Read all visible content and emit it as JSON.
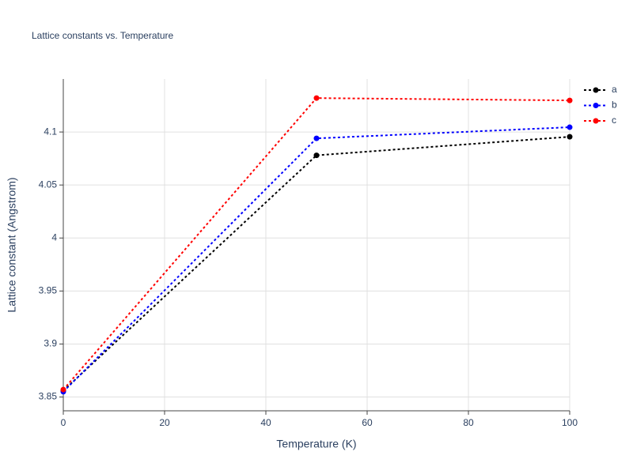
{
  "chart_data": {
    "type": "line",
    "title": "Lattice constants vs. Temperature",
    "x_label": "Temperature (K)",
    "y_label": "Lattice constant (Angstrom)",
    "x": [
      0,
      50,
      100
    ],
    "series": [
      {
        "name": "a",
        "color": "#000000",
        "values": [
          3.856,
          4.078,
          4.0955
        ]
      },
      {
        "name": "b",
        "color": "#0000ff",
        "values": [
          3.855,
          4.094,
          4.1045
        ]
      },
      {
        "name": "c",
        "color": "#ff0000",
        "values": [
          3.857,
          4.132,
          4.1298
        ]
      }
    ],
    "xlim": [
      0,
      100
    ],
    "xticks": [
      0,
      20,
      40,
      60,
      80,
      100
    ],
    "ylim": [
      3.837,
      4.15
    ],
    "yticks": [
      3.85,
      3.9,
      3.95,
      4,
      4.05,
      4.1
    ],
    "grid": true,
    "legend": "top-right"
  }
}
